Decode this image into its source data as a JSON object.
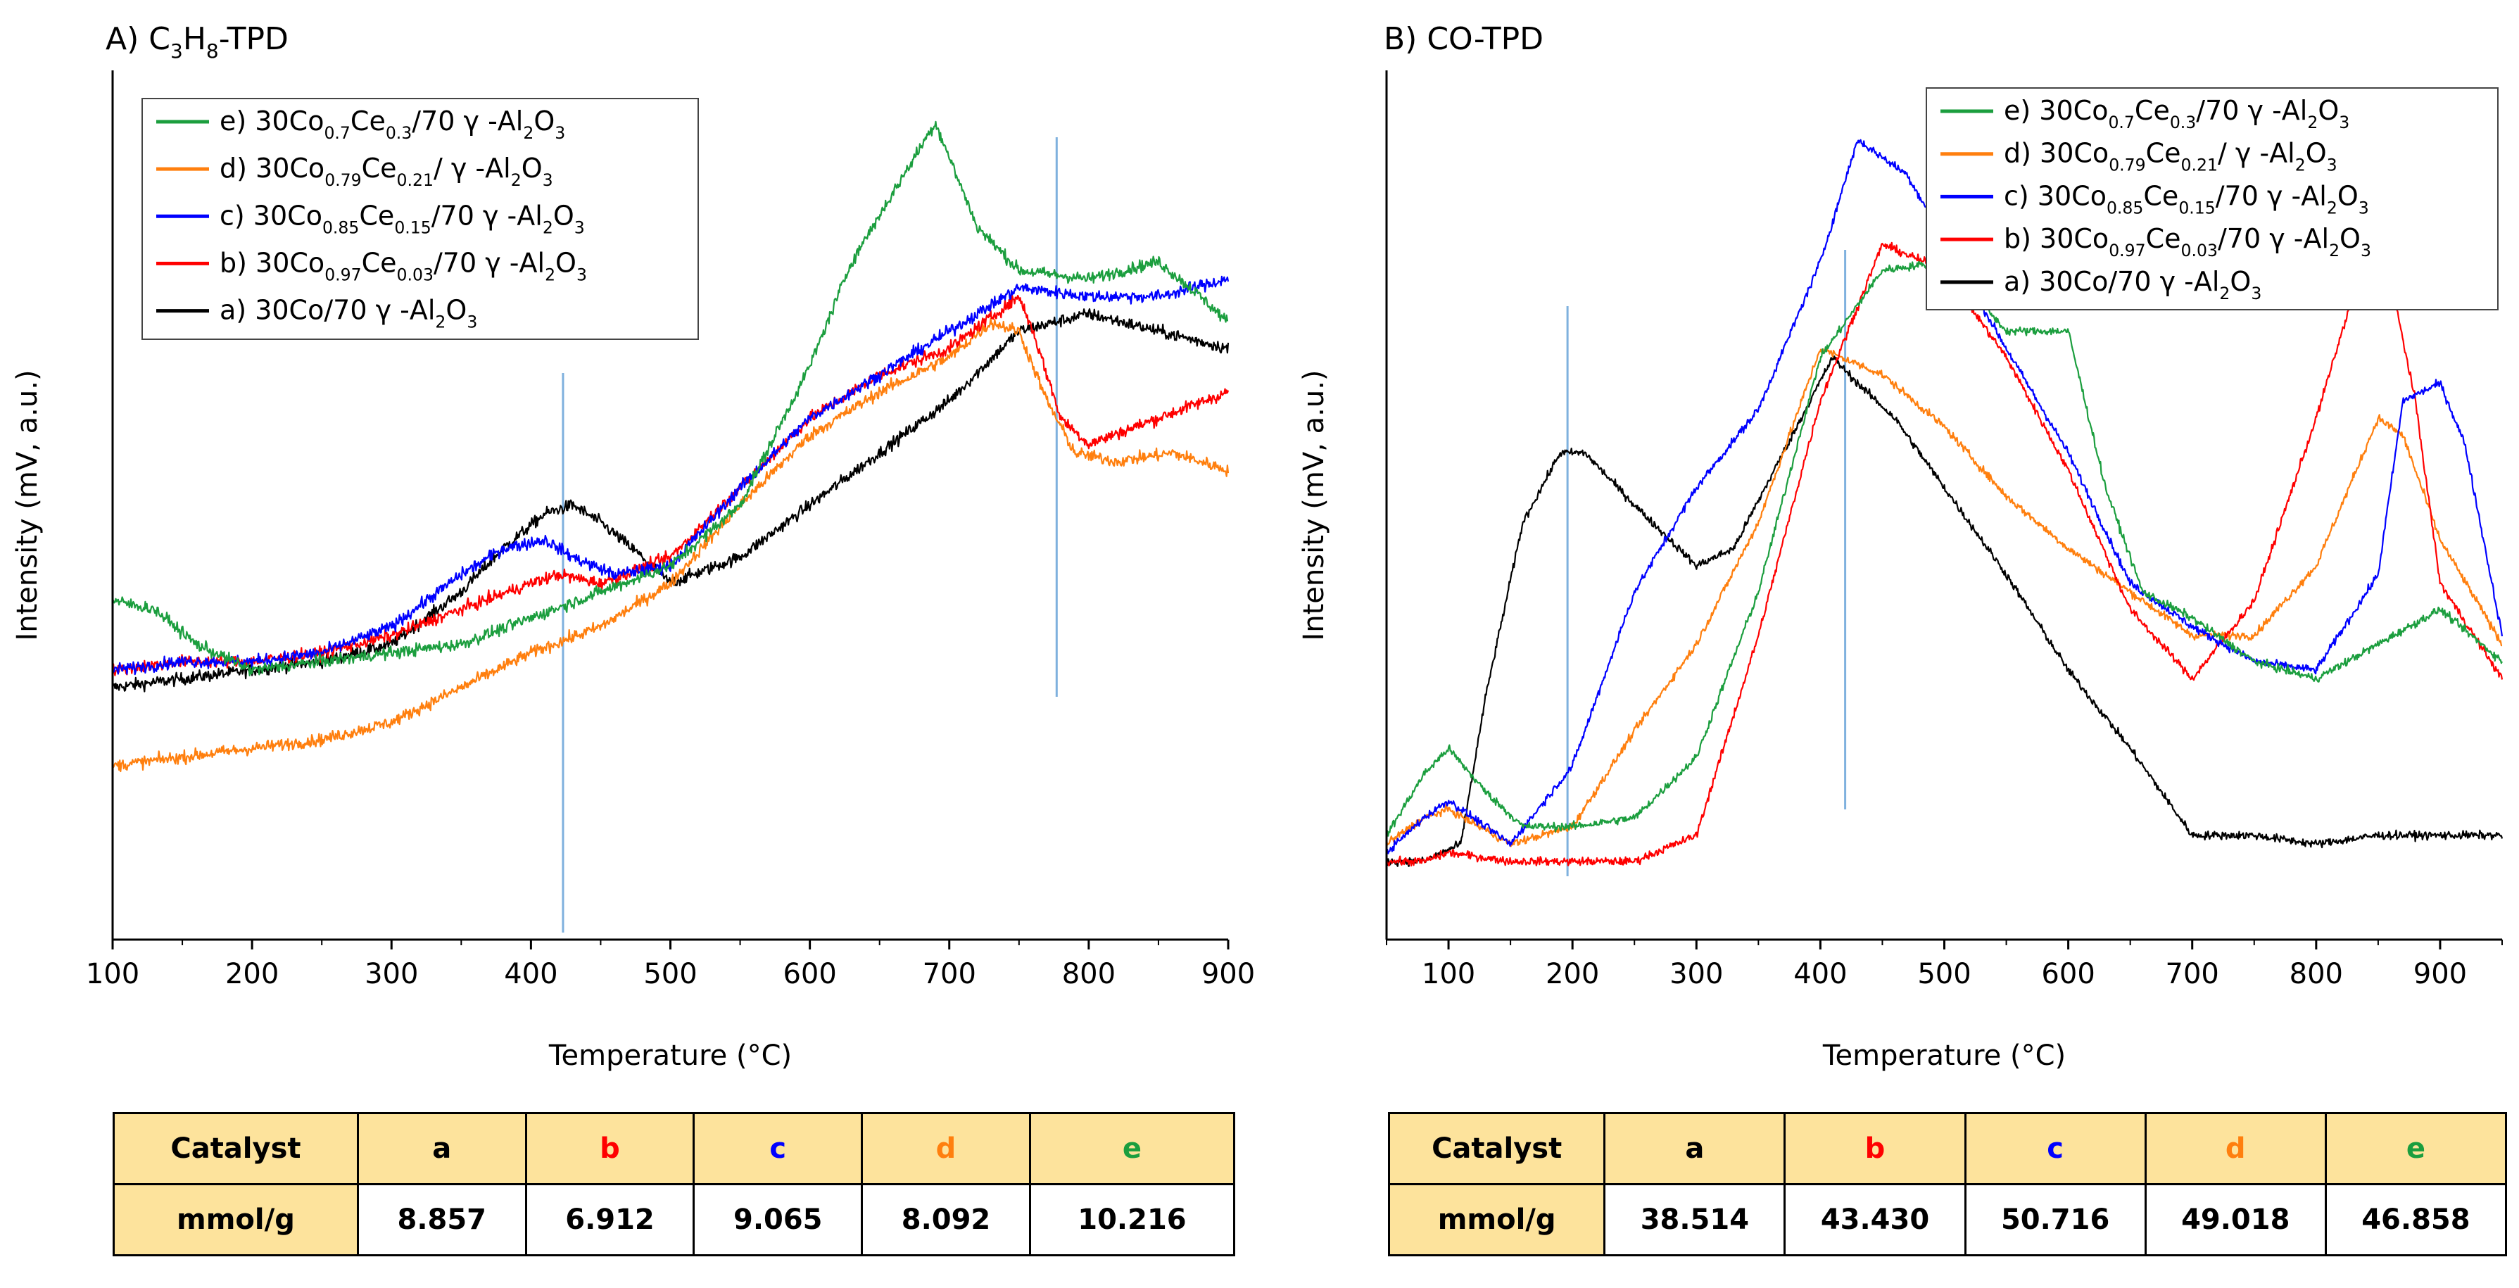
{
  "colors": {
    "a": "#000000",
    "b": "#ff0000",
    "c": "#0000ff",
    "d": "#ff7f0e",
    "e": "#1b9e3e",
    "marker": "#7fb1de",
    "table_header": "#fde39c"
  },
  "legend": [
    {
      "key": "e",
      "prefix": "e)",
      "label": "30Co0.7Ce0.3/70 γ -Al2O3"
    },
    {
      "key": "d",
      "prefix": "d)",
      "label": "30Co0.79Ce0.21/ γ -Al2O3"
    },
    {
      "key": "c",
      "prefix": "c)",
      "label": "30Co0.85Ce0.15/70 γ -Al2O3"
    },
    {
      "key": "b",
      "prefix": "b)",
      "label": "30Co0.97Ce0.03/70 γ -Al2O3"
    },
    {
      "key": "a",
      "prefix": "a)",
      "label": "30Co/70 γ -Al2O3"
    }
  ],
  "chart_data": [
    {
      "type": "line",
      "title": "A) C3H8-TPD",
      "xlabel": "Temperature (°C)",
      "ylabel": "Intensity (mV, a.u.)",
      "xlim": [
        100,
        900
      ],
      "ylim": [
        0,
        1
      ],
      "xticks": [
        100,
        200,
        300,
        400,
        500,
        600,
        700,
        800,
        900
      ],
      "marker_lines": [
        423,
        777
      ],
      "series": [
        {
          "key": "a",
          "name": "a) 30Co/70 γ -Al2O3",
          "x": [
            100,
            150,
            200,
            250,
            300,
            350,
            380,
            410,
            430,
            450,
            480,
            500,
            550,
            600,
            650,
            700,
            750,
            800,
            850,
            900
          ],
          "y": [
            0.29,
            0.3,
            0.31,
            0.32,
            0.34,
            0.4,
            0.45,
            0.49,
            0.5,
            0.48,
            0.44,
            0.41,
            0.44,
            0.5,
            0.56,
            0.62,
            0.7,
            0.72,
            0.7,
            0.68
          ]
        },
        {
          "key": "b",
          "name": "b) 30Co0.97Ce0.03/70 γ -Al2O3",
          "x": [
            100,
            150,
            200,
            250,
            300,
            350,
            400,
            420,
            450,
            500,
            550,
            600,
            650,
            700,
            750,
            760,
            780,
            800,
            850,
            900
          ],
          "y": [
            0.31,
            0.32,
            0.32,
            0.33,
            0.35,
            0.38,
            0.41,
            0.42,
            0.41,
            0.44,
            0.52,
            0.6,
            0.65,
            0.68,
            0.74,
            0.7,
            0.6,
            0.57,
            0.6,
            0.63
          ]
        },
        {
          "key": "c",
          "name": "c) 30Co0.85Ce0.15/70 γ -Al2O3",
          "x": [
            100,
            150,
            200,
            250,
            300,
            350,
            380,
            410,
            430,
            460,
            500,
            550,
            600,
            650,
            700,
            750,
            800,
            850,
            900
          ],
          "y": [
            0.31,
            0.32,
            0.32,
            0.33,
            0.36,
            0.42,
            0.45,
            0.46,
            0.44,
            0.42,
            0.43,
            0.52,
            0.6,
            0.65,
            0.7,
            0.75,
            0.74,
            0.74,
            0.76
          ]
        },
        {
          "key": "d",
          "name": "d) 30Co0.79Ce0.21/ γ -Al2O3",
          "x": [
            100,
            150,
            200,
            250,
            300,
            350,
            400,
            450,
            500,
            550,
            600,
            650,
            700,
            730,
            750,
            770,
            790,
            820,
            860,
            900
          ],
          "y": [
            0.2,
            0.21,
            0.22,
            0.23,
            0.25,
            0.29,
            0.33,
            0.36,
            0.41,
            0.5,
            0.58,
            0.63,
            0.67,
            0.71,
            0.7,
            0.62,
            0.56,
            0.55,
            0.56,
            0.54
          ]
        },
        {
          "key": "e",
          "name": "e) 30Co0.7Ce0.3/70 γ -Al2O3",
          "x": [
            100,
            130,
            160,
            200,
            250,
            300,
            350,
            400,
            450,
            500,
            550,
            600,
            630,
            660,
            690,
            720,
            750,
            800,
            850,
            880,
            900
          ],
          "y": [
            0.39,
            0.38,
            0.34,
            0.31,
            0.32,
            0.33,
            0.34,
            0.37,
            0.4,
            0.43,
            0.5,
            0.66,
            0.78,
            0.86,
            0.94,
            0.82,
            0.77,
            0.76,
            0.78,
            0.74,
            0.71
          ]
        }
      ]
    },
    {
      "type": "line",
      "title": "B) CO-TPD",
      "xlabel": "Temperature (°C)",
      "ylabel": "Intensity (mV, a.u.)",
      "xlim": [
        50,
        950
      ],
      "ylim": [
        0,
        1
      ],
      "xticks": [
        100,
        200,
        300,
        400,
        500,
        600,
        700,
        800,
        900
      ],
      "marker_lines": [
        196,
        420
      ],
      "series": [
        {
          "key": "a",
          "name": "a) 30Co/70 γ -Al2O3",
          "x": [
            50,
            80,
            110,
            130,
            160,
            190,
            210,
            250,
            300,
            330,
            370,
            410,
            430,
            460,
            500,
            550,
            600,
            650,
            700,
            750,
            800,
            850,
            900,
            950
          ],
          "y": [
            0.09,
            0.09,
            0.11,
            0.28,
            0.48,
            0.56,
            0.56,
            0.5,
            0.43,
            0.45,
            0.56,
            0.67,
            0.64,
            0.6,
            0.52,
            0.42,
            0.31,
            0.22,
            0.12,
            0.12,
            0.11,
            0.12,
            0.12,
            0.12
          ]
        },
        {
          "key": "b",
          "name": "b) 30Co0.97Ce0.03/70 γ -Al2O3",
          "x": [
            50,
            80,
            100,
            150,
            200,
            250,
            300,
            350,
            400,
            450,
            500,
            550,
            600,
            650,
            700,
            750,
            800,
            840,
            850,
            860,
            880,
            900,
            950
          ],
          "y": [
            0.09,
            0.09,
            0.1,
            0.09,
            0.09,
            0.09,
            0.12,
            0.35,
            0.62,
            0.8,
            0.77,
            0.67,
            0.54,
            0.38,
            0.3,
            0.39,
            0.6,
            0.79,
            0.81,
            0.76,
            0.62,
            0.41,
            0.3
          ]
        },
        {
          "key": "c",
          "name": "c) 30Co0.85Ce0.15/70 γ -Al2O3",
          "x": [
            50,
            80,
            100,
            150,
            200,
            250,
            300,
            350,
            400,
            430,
            470,
            550,
            600,
            650,
            700,
            750,
            800,
            850,
            870,
            900,
            920,
            950
          ],
          "y": [
            0.1,
            0.14,
            0.16,
            0.11,
            0.2,
            0.4,
            0.52,
            0.61,
            0.78,
            0.92,
            0.88,
            0.68,
            0.56,
            0.41,
            0.36,
            0.32,
            0.31,
            0.42,
            0.62,
            0.64,
            0.57,
            0.35
          ]
        },
        {
          "key": "d",
          "name": "d) 30Co0.79Ce0.21/ γ -Al2O3",
          "x": [
            50,
            80,
            100,
            150,
            200,
            250,
            300,
            350,
            400,
            450,
            500,
            550,
            600,
            650,
            700,
            750,
            800,
            850,
            870,
            900,
            950
          ],
          "y": [
            0.11,
            0.14,
            0.15,
            0.11,
            0.13,
            0.24,
            0.34,
            0.48,
            0.68,
            0.65,
            0.59,
            0.51,
            0.45,
            0.4,
            0.35,
            0.35,
            0.43,
            0.6,
            0.58,
            0.46,
            0.34
          ]
        },
        {
          "key": "e",
          "name": "e) 30Co0.7Ce0.3/70 γ -Al2O3",
          "x": [
            50,
            80,
            100,
            130,
            160,
            200,
            250,
            300,
            350,
            400,
            450,
            500,
            550,
            600,
            630,
            660,
            700,
            750,
            800,
            850,
            900,
            950
          ],
          "y": [
            0.12,
            0.19,
            0.22,
            0.17,
            0.13,
            0.13,
            0.14,
            0.21,
            0.4,
            0.67,
            0.77,
            0.78,
            0.7,
            0.7,
            0.52,
            0.4,
            0.37,
            0.32,
            0.3,
            0.34,
            0.38,
            0.32
          ]
        }
      ]
    }
  ],
  "tables": [
    {
      "header_label": "Catalyst",
      "row_label": "mmol/g",
      "keys": [
        "a",
        "b",
        "c",
        "d",
        "e"
      ],
      "values": [
        "8.857",
        "6.912",
        "9.065",
        "8.092",
        "10.216"
      ]
    },
    {
      "header_label": "Catalyst",
      "row_label": "mmol/g",
      "keys": [
        "a",
        "b",
        "c",
        "d",
        "e"
      ],
      "values": [
        "38.514",
        "43.430",
        "50.716",
        "49.018",
        "46.858"
      ]
    }
  ]
}
